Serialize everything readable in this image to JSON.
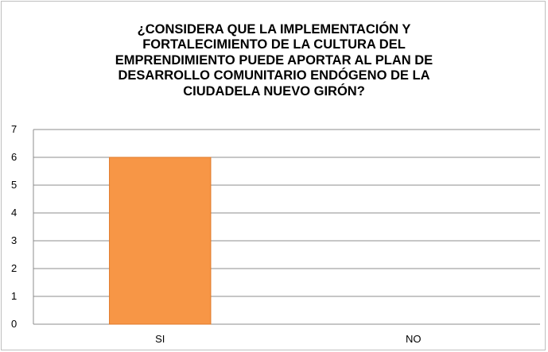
{
  "chart_data": {
    "type": "bar",
    "title_lines": [
      "¿CONSIDERA QUE LA IMPLEMENTACIÓN Y",
      "FORTALECIMIENTO DE LA CULTURA DEL",
      "EMPRENDIMIENTO PUEDE APORTAR AL PLAN DE",
      "DESARROLLO COMUNITARIO ENDÓGENO DE LA",
      "CIUDADELA NUEVO GIRÓN?"
    ],
    "categories": [
      "SI",
      "NO"
    ],
    "values": [
      6,
      0
    ],
    "ylim": [
      0,
      7
    ],
    "yticks": [
      "0",
      "1",
      "2",
      "3",
      "4",
      "5",
      "6",
      "7"
    ],
    "grid": true,
    "legend": "none",
    "colors": {
      "bar": "#F79646",
      "bar_stroke": "#E07A2A",
      "grid": "#8c8c8c",
      "axis": "#8c8c8c"
    }
  }
}
